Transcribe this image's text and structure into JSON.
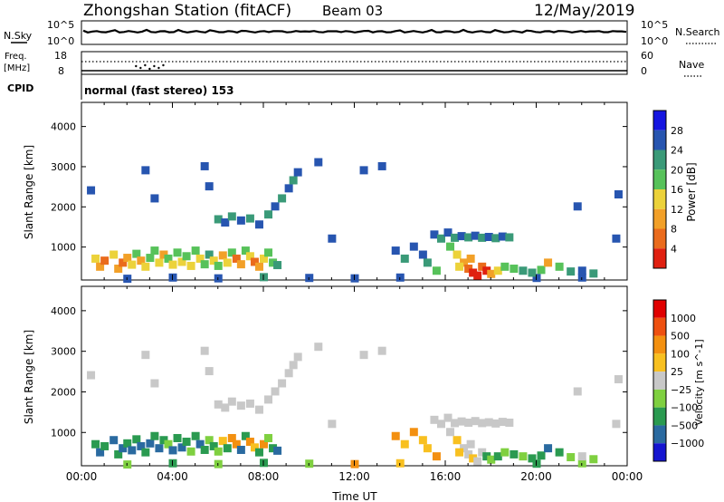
{
  "header": {
    "title": "Zhongshan Station (fitACF)",
    "beam": "Beam 03",
    "date": "12/May/2019"
  },
  "panels": {
    "nsky_label": "N.Sky",
    "nsky_top": "10^5",
    "nsky_bottom": "10^0",
    "nsearch_label": "N.Search",
    "nsearch_top": "10^5",
    "nsearch_bottom": "10^0",
    "freq_label": "Freq.",
    "freq_unit": "[MHz]",
    "freq_top": "18",
    "freq_bottom": "8",
    "nave_label": "Nave",
    "nave_top": "60",
    "nave_bottom": "0",
    "cpid_label": "CPID",
    "cpid_text": "normal (fast stereo) 153"
  },
  "colors": {
    "power": [
      "#1515e0",
      "#2755b0",
      "#3a9a78",
      "#57c25a",
      "#ecd23a",
      "#f2a028",
      "#ea6b1c",
      "#e02010"
    ],
    "velocity": [
      "#e00000",
      "#ee5010",
      "#f39010",
      "#f8c020",
      "#c8c8c8",
      "#7fd040",
      "#2a9a50",
      "#2a6aa0",
      "#1515d0"
    ]
  },
  "chart_data": [
    {
      "type": "heatmap",
      "name": "power",
      "ylabel": "Slant Range [km]",
      "yticks": [
        1000,
        2000,
        3000,
        4000
      ],
      "ylim": [
        180,
        4600
      ],
      "xlim": [
        0,
        24
      ],
      "colorbar_label": "Power [dB]",
      "colorbar_ticks": [
        "4",
        "8",
        "12",
        "16",
        "20",
        "24",
        "28"
      ],
      "cells": [
        [
          0.6,
          700,
          4
        ],
        [
          0.8,
          500,
          5
        ],
        [
          1.0,
          650,
          6
        ],
        [
          1.4,
          800,
          4
        ],
        [
          1.6,
          450,
          5
        ],
        [
          1.8,
          600,
          6
        ],
        [
          2.0,
          720,
          5
        ],
        [
          2.2,
          550,
          4
        ],
        [
          2.4,
          820,
          3
        ],
        [
          2.6,
          650,
          5
        ],
        [
          2.8,
          500,
          4
        ],
        [
          3.0,
          720,
          3
        ],
        [
          3.2,
          900,
          3
        ],
        [
          3.4,
          600,
          4
        ],
        [
          3.6,
          800,
          5
        ],
        [
          3.8,
          700,
          3
        ],
        [
          4.0,
          550,
          4
        ],
        [
          4.2,
          850,
          3
        ],
        [
          4.4,
          620,
          4
        ],
        [
          4.6,
          760,
          3
        ],
        [
          4.8,
          520,
          4
        ],
        [
          5.0,
          900,
          3
        ],
        [
          5.2,
          700,
          4
        ],
        [
          5.4,
          560,
          3
        ],
        [
          5.6,
          800,
          2
        ],
        [
          5.8,
          650,
          4
        ],
        [
          6.0,
          520,
          3
        ],
        [
          6.2,
          780,
          5
        ],
        [
          6.4,
          600,
          4
        ],
        [
          6.6,
          850,
          3
        ],
        [
          6.8,
          700,
          6
        ],
        [
          7.0,
          560,
          5
        ],
        [
          7.2,
          900,
          3
        ],
        [
          7.4,
          760,
          4
        ],
        [
          7.6,
          620,
          6
        ],
        [
          7.8,
          500,
          5
        ],
        [
          8.0,
          700,
          4
        ],
        [
          8.2,
          850,
          3
        ],
        [
          8.4,
          600,
          3
        ],
        [
          8.6,
          540,
          2
        ],
        [
          6.0,
          1680,
          2
        ],
        [
          6.3,
          1600,
          1
        ],
        [
          6.6,
          1750,
          2
        ],
        [
          7.0,
          1650,
          1
        ],
        [
          7.4,
          1700,
          2
        ],
        [
          7.8,
          1550,
          1
        ],
        [
          8.2,
          1800,
          2
        ],
        [
          8.5,
          2000,
          1
        ],
        [
          8.8,
          2200,
          2
        ],
        [
          9.1,
          2450,
          1
        ],
        [
          9.3,
          2650,
          2
        ],
        [
          9.5,
          2850,
          1
        ],
        [
          2.0,
          200,
          1
        ],
        [
          4.0,
          230,
          1
        ],
        [
          6.0,
          210,
          1
        ],
        [
          8.0,
          240,
          2
        ],
        [
          10.0,
          220,
          1
        ],
        [
          12.0,
          210,
          1
        ],
        [
          14.0,
          230,
          1
        ],
        [
          20.0,
          220,
          1
        ],
        [
          22.0,
          230,
          1
        ],
        [
          15.5,
          1300,
          1
        ],
        [
          15.8,
          1200,
          2
        ],
        [
          16.1,
          1350,
          1
        ],
        [
          16.4,
          1220,
          2
        ],
        [
          16.7,
          1260,
          1
        ],
        [
          17.0,
          1230,
          2
        ],
        [
          17.3,
          1270,
          1
        ],
        [
          17.6,
          1220,
          2
        ],
        [
          17.9,
          1240,
          1
        ],
        [
          18.2,
          1210,
          2
        ],
        [
          18.5,
          1250,
          1
        ],
        [
          18.8,
          1230,
          2
        ],
        [
          16.2,
          1000,
          3
        ],
        [
          16.5,
          800,
          4
        ],
        [
          16.8,
          600,
          5
        ],
        [
          17.0,
          450,
          6
        ],
        [
          17.2,
          350,
          7
        ],
        [
          17.4,
          280,
          8
        ],
        [
          17.1,
          700,
          5
        ],
        [
          16.6,
          500,
          4
        ],
        [
          17.6,
          500,
          6
        ],
        [
          17.8,
          400,
          7
        ],
        [
          18.0,
          320,
          5
        ],
        [
          18.3,
          400,
          4
        ],
        [
          18.6,
          500,
          3
        ],
        [
          19.0,
          450,
          3
        ],
        [
          19.4,
          400,
          2
        ],
        [
          19.8,
          350,
          2
        ],
        [
          20.2,
          420,
          3
        ],
        [
          20.5,
          600,
          5
        ],
        [
          21.0,
          500,
          3
        ],
        [
          21.5,
          380,
          2
        ],
        [
          22.0,
          400,
          1
        ],
        [
          22.5,
          330,
          2
        ],
        [
          13.8,
          900,
          1
        ],
        [
          14.2,
          700,
          2
        ],
        [
          14.6,
          1000,
          1
        ],
        [
          15.0,
          800,
          1
        ],
        [
          15.2,
          600,
          2
        ],
        [
          15.6,
          400,
          3
        ],
        [
          5.4,
          3000,
          1
        ],
        [
          5.6,
          2500,
          1
        ],
        [
          2.8,
          2900,
          1
        ],
        [
          3.2,
          2200,
          1
        ],
        [
          12.4,
          2900,
          1
        ],
        [
          13.2,
          3000,
          1
        ],
        [
          11.0,
          1200,
          1
        ],
        [
          10.4,
          3100,
          1
        ],
        [
          21.8,
          2000,
          1
        ],
        [
          23.6,
          2300,
          1
        ],
        [
          0.4,
          2400,
          1
        ],
        [
          23.5,
          1200,
          1
        ]
      ]
    },
    {
      "type": "heatmap",
      "name": "velocity",
      "ylabel": "Slant Range [km]",
      "xlabel": "Time UT",
      "yticks": [
        1000,
        2000,
        3000,
        4000
      ],
      "ylim": [
        180,
        4600
      ],
      "xlim": [
        0,
        24
      ],
      "xticks": [
        "00:00",
        "04:00",
        "08:00",
        "12:00",
        "16:00",
        "20:00",
        "00:00"
      ],
      "colorbar_label": "Velocity [m s^-1]",
      "colorbar_ticks": [
        "1000",
        "500",
        "100",
        "25",
        "−25",
        "−100",
        "−500",
        "−1000"
      ],
      "cells": [
        [
          0.6,
          700,
          2
        ],
        [
          0.8,
          500,
          1
        ],
        [
          1.0,
          650,
          2
        ],
        [
          1.4,
          800,
          1
        ],
        [
          1.6,
          450,
          2
        ],
        [
          1.8,
          600,
          1
        ],
        [
          2.0,
          720,
          2
        ],
        [
          2.2,
          550,
          1
        ],
        [
          2.4,
          820,
          2
        ],
        [
          2.6,
          650,
          1
        ],
        [
          2.8,
          500,
          2
        ],
        [
          3.0,
          720,
          1
        ],
        [
          3.2,
          900,
          2
        ],
        [
          3.4,
          600,
          1
        ],
        [
          3.6,
          800,
          2
        ],
        [
          3.8,
          700,
          3
        ],
        [
          4.0,
          550,
          1
        ],
        [
          4.2,
          850,
          2
        ],
        [
          4.4,
          620,
          1
        ],
        [
          4.6,
          760,
          2
        ],
        [
          4.8,
          520,
          3
        ],
        [
          5.0,
          900,
          2
        ],
        [
          5.2,
          700,
          1
        ],
        [
          5.4,
          560,
          2
        ],
        [
          5.6,
          800,
          3
        ],
        [
          5.8,
          650,
          2
        ],
        [
          6.0,
          520,
          3
        ],
        [
          6.2,
          780,
          5
        ],
        [
          6.4,
          600,
          2
        ],
        [
          6.6,
          850,
          6
        ],
        [
          6.8,
          700,
          6
        ],
        [
          7.0,
          560,
          1
        ],
        [
          7.2,
          900,
          2
        ],
        [
          7.4,
          760,
          6
        ],
        [
          7.6,
          620,
          5
        ],
        [
          7.8,
          500,
          2
        ],
        [
          8.0,
          700,
          6
        ],
        [
          8.2,
          850,
          3
        ],
        [
          8.4,
          600,
          2
        ],
        [
          8.6,
          540,
          1
        ],
        [
          6.0,
          1680,
          4
        ],
        [
          6.3,
          1600,
          4
        ],
        [
          6.6,
          1750,
          4
        ],
        [
          7.0,
          1650,
          4
        ],
        [
          7.4,
          1700,
          4
        ],
        [
          7.8,
          1550,
          4
        ],
        [
          8.2,
          1800,
          4
        ],
        [
          8.5,
          2000,
          4
        ],
        [
          8.8,
          2200,
          4
        ],
        [
          9.1,
          2450,
          4
        ],
        [
          9.3,
          2650,
          4
        ],
        [
          9.5,
          2850,
          4
        ],
        [
          2.0,
          200,
          3
        ],
        [
          4.0,
          230,
          2
        ],
        [
          6.0,
          210,
          3
        ],
        [
          8.0,
          240,
          2
        ],
        [
          10.0,
          220,
          3
        ],
        [
          12.0,
          210,
          6
        ],
        [
          14.0,
          230,
          5
        ],
        [
          20.0,
          220,
          2
        ],
        [
          22.0,
          230,
          3
        ],
        [
          15.5,
          1300,
          4
        ],
        [
          15.8,
          1200,
          4
        ],
        [
          16.1,
          1350,
          4
        ],
        [
          16.4,
          1220,
          4
        ],
        [
          16.7,
          1260,
          4
        ],
        [
          17.0,
          1230,
          4
        ],
        [
          17.3,
          1270,
          4
        ],
        [
          17.6,
          1220,
          4
        ],
        [
          17.9,
          1240,
          4
        ],
        [
          18.2,
          1210,
          4
        ],
        [
          18.5,
          1250,
          4
        ],
        [
          18.8,
          1230,
          4
        ],
        [
          16.2,
          1000,
          4
        ],
        [
          16.5,
          800,
          5
        ],
        [
          16.8,
          600,
          4
        ],
        [
          17.0,
          450,
          4
        ],
        [
          17.2,
          350,
          5
        ],
        [
          17.4,
          280,
          4
        ],
        [
          17.1,
          700,
          4
        ],
        [
          16.6,
          500,
          5
        ],
        [
          17.6,
          500,
          4
        ],
        [
          17.8,
          400,
          2
        ],
        [
          18.0,
          320,
          3
        ],
        [
          18.3,
          400,
          2
        ],
        [
          18.6,
          500,
          3
        ],
        [
          19.0,
          450,
          2
        ],
        [
          19.4,
          400,
          3
        ],
        [
          19.8,
          350,
          2
        ],
        [
          20.2,
          420,
          2
        ],
        [
          20.5,
          600,
          1
        ],
        [
          21.0,
          500,
          2
        ],
        [
          21.5,
          380,
          3
        ],
        [
          22.0,
          400,
          4
        ],
        [
          22.5,
          330,
          3
        ],
        [
          13.8,
          900,
          6
        ],
        [
          14.2,
          700,
          5
        ],
        [
          14.6,
          1000,
          6
        ],
        [
          15.0,
          800,
          5
        ],
        [
          15.2,
          600,
          5
        ],
        [
          15.6,
          400,
          6
        ],
        [
          5.4,
          3000,
          4
        ],
        [
          5.6,
          2500,
          4
        ],
        [
          2.8,
          2900,
          4
        ],
        [
          3.2,
          2200,
          4
        ],
        [
          12.4,
          2900,
          4
        ],
        [
          13.2,
          3000,
          4
        ],
        [
          11.0,
          1200,
          4
        ],
        [
          10.4,
          3100,
          4
        ],
        [
          21.8,
          2000,
          4
        ],
        [
          23.6,
          2300,
          4
        ],
        [
          0.4,
          2400,
          4
        ],
        [
          23.5,
          1200,
          4
        ]
      ]
    }
  ]
}
